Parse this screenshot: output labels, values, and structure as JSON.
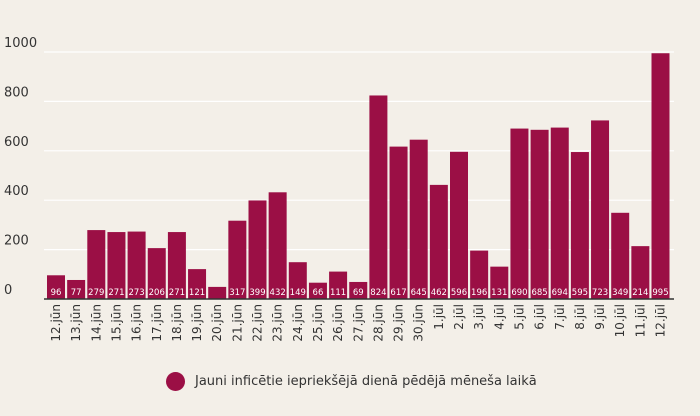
{
  "chart_data": {
    "type": "bar",
    "categories": [
      "12.jūn",
      "13.jūn",
      "14.jūn",
      "15.jūn",
      "16.jūn",
      "17.jūn",
      "18.jūn",
      "19.jūn",
      "20.jūn",
      "21.jūn",
      "22.jūn",
      "23.jūn",
      "24.jūn",
      "25.jūn",
      "26.jūn",
      "27.jūn",
      "28.jūn",
      "29.jūn",
      "30.jūn",
      "1.jūl",
      "2.jūl",
      "3.jūl",
      "4.jūl",
      "5.jūl",
      "6.jūl",
      "7.jūl",
      "8.jūl",
      "9.jūl",
      "10.jūl",
      "11.jūl",
      "12.jūl"
    ],
    "series": [
      {
        "name": "Jauni inficētie iepriekšējā dienā pēdējā mēneša laikā",
        "values": [
          96,
          77,
          279,
          271,
          273,
          206,
          271,
          121,
          49,
          317,
          399,
          432,
          149,
          66,
          111,
          69,
          824,
          617,
          645,
          462,
          596,
          196,
          131,
          690,
          685,
          694,
          595,
          723,
          349,
          214,
          995
        ]
      }
    ],
    "data_labels": [
      "96",
      "77",
      "279",
      "271",
      "273",
      "206",
      "271",
      "121",
      "",
      "317",
      "399",
      "432",
      "149",
      "66",
      "111",
      "69",
      "824",
      "617",
      "645",
      "462",
      "596",
      "196",
      "131",
      "690",
      "685",
      "694",
      "595",
      "723",
      "349",
      "214",
      "995"
    ],
    "yticks": [
      "0",
      "200",
      "400",
      "600",
      "800",
      "1000"
    ],
    "ylim": [
      0,
      1000
    ],
    "grid": true,
    "legend_position": "bottom-center",
    "colors": {
      "bar": "#9b0f45",
      "background": "#f3efe8",
      "grid": "#ffffff",
      "axis": "#333333"
    }
  },
  "legend": {
    "label": "Jauni inficētie iepriekšējā dienā pēdējā mēneša laikā"
  }
}
